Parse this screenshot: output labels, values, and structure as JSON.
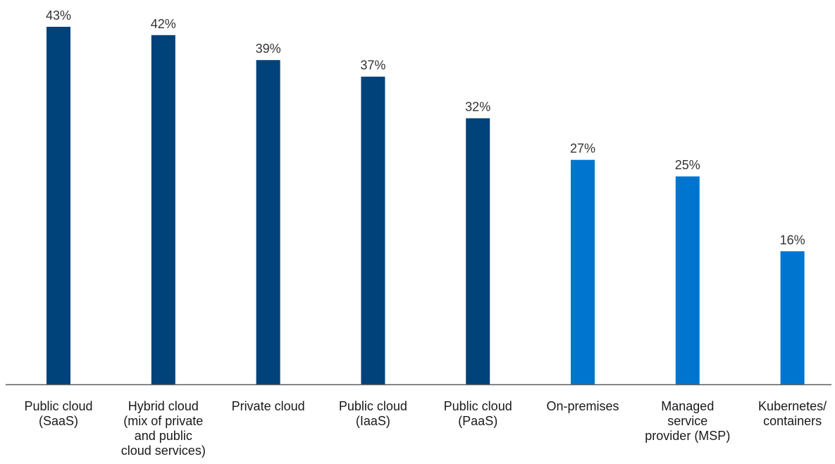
{
  "chart_data": {
    "type": "bar",
    "categories": [
      [
        "Public cloud",
        "(SaaS)"
      ],
      [
        "Hybrid cloud",
        "(mix of private",
        "and public",
        "cloud services)"
      ],
      [
        "Private cloud"
      ],
      [
        "Public cloud",
        "(IaaS)"
      ],
      [
        "Public cloud",
        "(PaaS)"
      ],
      [
        "On-premises"
      ],
      [
        "Managed",
        "service",
        "provider (MSP)"
      ],
      [
        "Kubernetes/",
        "containers"
      ]
    ],
    "values": [
      43,
      42,
      39,
      37,
      32,
      27,
      25,
      16
    ],
    "value_labels": [
      "43%",
      "42%",
      "39%",
      "37%",
      "32%",
      "27%",
      "25%",
      "16%"
    ],
    "bar_colors": [
      "#00427a",
      "#00427a",
      "#00427a",
      "#00427a",
      "#00427a",
      "#0075cf",
      "#0075cf",
      "#0075cf"
    ],
    "axis_color": "#5a5a5a",
    "ylim": [
      0,
      43
    ],
    "grid": false,
    "legend": "none",
    "title": "",
    "xlabel": "",
    "ylabel": ""
  }
}
